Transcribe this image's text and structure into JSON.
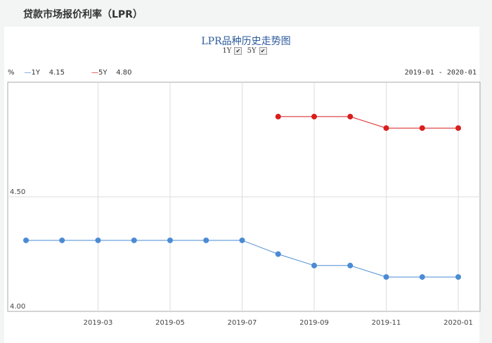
{
  "header": {
    "title": "贷款市场报价利率（LPR）"
  },
  "chart_data": {
    "type": "line",
    "title": "LPR品种历史走势图",
    "toggles": [
      {
        "label": "1Y",
        "checked": true
      },
      {
        "label": "5Y",
        "checked": true
      }
    ],
    "ylabel": "%",
    "range_label": "2019-01 - 2020-01",
    "ylim": [
      4.0,
      5.0
    ],
    "yticks": [
      "4.00",
      "4.50"
    ],
    "xticks": [
      "2019-03",
      "2019-05",
      "2019-07",
      "2019-09",
      "2019-11",
      "2020-01"
    ],
    "x": [
      "2019-01",
      "2019-02",
      "2019-03",
      "2019-04",
      "2019-05",
      "2019-06",
      "2019-07",
      "2019-08",
      "2019-09",
      "2019-10",
      "2019-11",
      "2019-12",
      "2020-01"
    ],
    "series": [
      {
        "name": "1Y",
        "latest": "4.15",
        "color": "#4a8bd4",
        "values": [
          4.31,
          4.31,
          4.31,
          4.31,
          4.31,
          4.31,
          4.31,
          4.25,
          4.2,
          4.2,
          4.15,
          4.15,
          4.15
        ]
      },
      {
        "name": "5Y",
        "latest": "4.80",
        "color": "#d81e1e",
        "values": [
          null,
          null,
          null,
          null,
          null,
          null,
          null,
          4.85,
          4.85,
          4.85,
          4.8,
          4.8,
          4.8
        ]
      }
    ],
    "grid": true
  }
}
